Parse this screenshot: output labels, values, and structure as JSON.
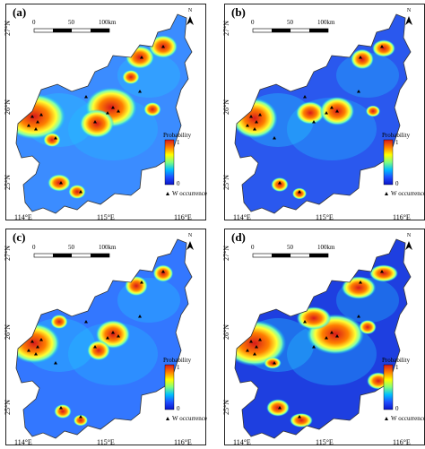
{
  "panels": [
    {
      "label": "(a)"
    },
    {
      "label": "(b)"
    },
    {
      "label": "(c)"
    },
    {
      "label": "(d)"
    }
  ],
  "axes": {
    "lat_labels": [
      "27°N",
      "26°N",
      "25°N"
    ],
    "lon_labels": [
      "114°E",
      "115°E",
      "116°E"
    ]
  },
  "scale_bar": {
    "ticks": [
      "0",
      "50",
      "100km"
    ]
  },
  "north_arrow": {
    "label": "N"
  },
  "legend": {
    "title": "Probability",
    "max_label": "1",
    "min_label": "0",
    "occurrence_label": "W occurrence",
    "colors": [
      "#d7191c",
      "#ff7f00",
      "#ffff00",
      "#7fff7f",
      "#00bfff",
      "#1f4fff",
      "#0a14c8"
    ]
  },
  "colors": {
    "frame": "#222222",
    "low": "#2266ee",
    "hot": "#ee2211"
  }
}
